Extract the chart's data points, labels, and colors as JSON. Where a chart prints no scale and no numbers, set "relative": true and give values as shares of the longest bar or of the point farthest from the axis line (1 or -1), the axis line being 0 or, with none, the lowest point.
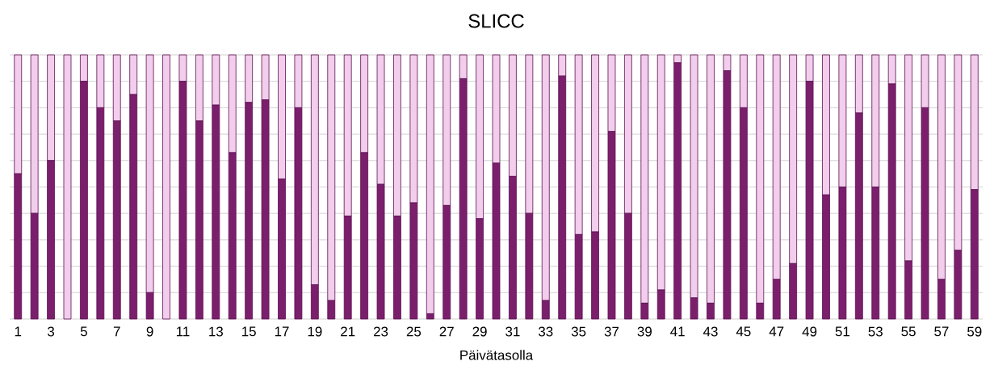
{
  "chart_data": {
    "type": "bar",
    "title": "SLICC",
    "xlabel": "Päivätasolla",
    "stacked": true,
    "relative": true,
    "grid": "y",
    "categories": [
      "1",
      null,
      "3",
      null,
      "5",
      null,
      "7",
      null,
      "9",
      null,
      "11",
      null,
      "13",
      null,
      "15",
      null,
      "17",
      null,
      "19",
      null,
      "21",
      null,
      "23",
      null,
      "25",
      null,
      "27",
      null,
      "29",
      null,
      "31",
      null,
      "33",
      null,
      "35",
      null,
      "37",
      null,
      "39",
      null,
      "41",
      null,
      "43",
      null,
      "45",
      null,
      "47",
      null,
      "49",
      null,
      "51",
      null,
      "53",
      null,
      "55",
      null,
      "57",
      null,
      "59"
    ],
    "series": [
      {
        "color": "#7b1f6c",
        "values": [
          0.55,
          0.4,
          0.6,
          0,
          0.9,
          0.8,
          0.75,
          0.85,
          0.1,
          0,
          0.9,
          0.75,
          0.81,
          0.63,
          0.82,
          0.83,
          0.53,
          0.8,
          0.13,
          0.07,
          0.39,
          0.63,
          0.51,
          0.39,
          0.44,
          0.02,
          0.43,
          0.91,
          0.38,
          0.59,
          0.54,
          0.4,
          0.07,
          0.92,
          0.32,
          0.33,
          0.71,
          0.4,
          0.06,
          0.11,
          0.97,
          0.08,
          0.06,
          0.94,
          0.8,
          0.06,
          0.15,
          0.21,
          0.9,
          0.47,
          0.5,
          0.78,
          0.5,
          0.89,
          0.22,
          0.8,
          0.15,
          0.26,
          0.49
        ]
      },
      {
        "color": "#f2cdec",
        "values": [
          0.45,
          0.6,
          0.4,
          1,
          0.1,
          0.2,
          0.25,
          0.15,
          0.9,
          1,
          0.1,
          0.25,
          0.19,
          0.37,
          0.18,
          0.17,
          0.47,
          0.2,
          0.87,
          0.93,
          0.61,
          0.37,
          0.49,
          0.61,
          0.56,
          0.98,
          0.57,
          0.09,
          0.62,
          0.41,
          0.46,
          0.6,
          0.93,
          0.08,
          0.68,
          0.67,
          0.29,
          0.6,
          0.94,
          0.89,
          0.03,
          0.92,
          0.94,
          0.06,
          0.2,
          0.94,
          0.85,
          0.79,
          0.1,
          0.53,
          0.5,
          0.22,
          0.5,
          0.11,
          0.78,
          0.2,
          0.85,
          0.74,
          0.51
        ]
      }
    ]
  }
}
